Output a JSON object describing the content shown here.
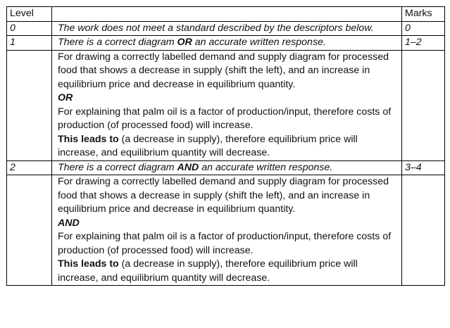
{
  "header": {
    "level": "Level",
    "descriptor": "",
    "marks": "Marks"
  },
  "rows": [
    {
      "level": "0",
      "descriptor": "The work does not meet a standard described by the descriptors below.",
      "marks": "0"
    },
    {
      "level": "1",
      "descriptor_pre": "There is a correct diagram ",
      "descriptor_key": "OR",
      "descriptor_post": " an accurate written response.",
      "marks": "1–2",
      "body": {
        "para1": "For drawing a correctly labelled demand and supply diagram for processed food that shows a decrease in supply (shift the left), and an increase in equilibrium price and decrease in equilibrium quantity.",
        "connector": "OR",
        "para2": "For explaining that palm oil is a factor of production/input, therefore costs of production (of processed food) will increase.",
        "lead": "This leads to",
        "para3": " (a decrease in supply), therefore equilibrium price will increase, and equilibrium quantity will decrease."
      }
    },
    {
      "level": "2",
      "descriptor_pre": "There is a correct diagram ",
      "descriptor_key": "AND",
      "descriptor_post": " an accurate written response.",
      "marks": "3–4",
      "body": {
        "para1": "For drawing a correctly labelled demand and supply diagram for processed food that shows a decrease in supply (shift the left), and an increase in equilibrium price and decrease in equilibrium quantity.",
        "connector": "AND",
        "para2": "For explaining that palm oil is a factor of production/input, therefore costs of production (of processed food) will increase.",
        "lead": "This leads to",
        "para3": " (a decrease in supply), therefore equilibrium price will increase, and equilibrium quantity will decrease."
      }
    }
  ]
}
